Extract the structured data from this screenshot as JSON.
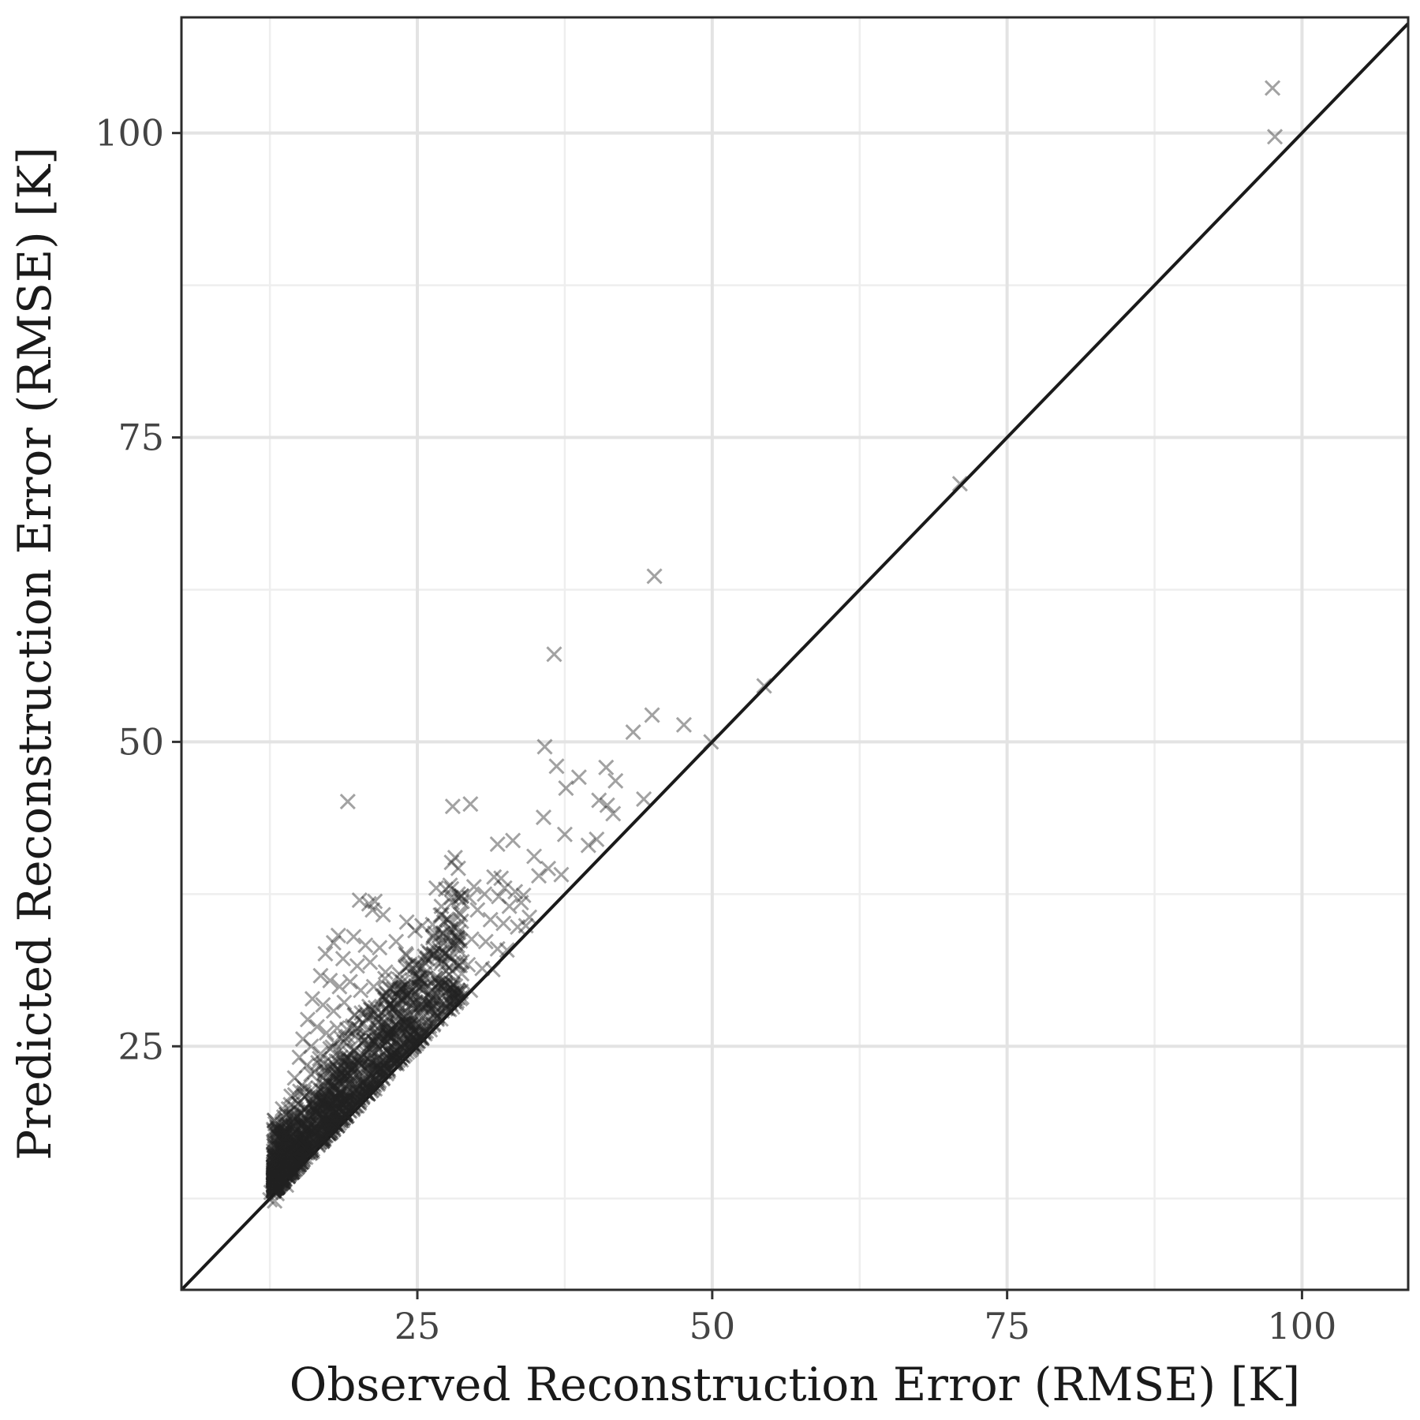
{
  "chart_data": {
    "type": "scatter",
    "title": "",
    "xlabel": "Observed Reconstruction Error (RMSE) [K]",
    "ylabel": "Predicted Reconstruction Error (RMSE) [K]",
    "xlim": [
      5,
      109
    ],
    "ylim": [
      5,
      109.5
    ],
    "x_ticks": [
      25,
      50,
      75,
      100
    ],
    "y_ticks": [
      25,
      50,
      75,
      100
    ],
    "x_tick_labels": [
      "25",
      "50",
      "75",
      "100"
    ],
    "y_tick_labels": [
      "25",
      "50",
      "75",
      "100"
    ],
    "x_minor_ticks": [
      12.5,
      37.5,
      62.5,
      87.5
    ],
    "y_minor_ticks": [
      12.5,
      37.5,
      62.5,
      87.5
    ],
    "grid": true,
    "reference_line": {
      "type": "identity",
      "slope": 1,
      "intercept": 0
    },
    "marker": "x",
    "marker_color": "#222222",
    "marker_opacity": 0.42,
    "series": [
      {
        "points": [
          [
            97.5,
            103.7
          ],
          [
            97.7,
            99.7
          ],
          [
            71.0,
            71.2
          ],
          [
            45.1,
            63.6
          ],
          [
            36.6,
            57.2
          ],
          [
            54.4,
            54.6
          ],
          [
            49.9,
            50.0
          ],
          [
            44.9,
            52.2
          ],
          [
            43.3,
            50.8
          ],
          [
            47.6,
            51.4
          ],
          [
            35.8,
            49.6
          ],
          [
            36.8,
            48.0
          ],
          [
            38.7,
            47.1
          ],
          [
            37.6,
            46.2
          ],
          [
            41.0,
            47.9
          ],
          [
            41.8,
            46.8
          ],
          [
            40.4,
            45.2
          ],
          [
            41.1,
            44.8
          ],
          [
            44.2,
            45.3
          ],
          [
            41.6,
            44.1
          ],
          [
            19.1,
            45.1
          ],
          [
            28.0,
            44.7
          ],
          [
            29.5,
            44.9
          ],
          [
            35.7,
            43.8
          ],
          [
            37.5,
            42.4
          ],
          [
            39.5,
            41.5
          ],
          [
            40.2,
            42.0
          ],
          [
            33.1,
            41.9
          ],
          [
            31.8,
            41.6
          ],
          [
            28.2,
            40.5
          ],
          [
            27.9,
            40.1
          ],
          [
            34.9,
            40.6
          ],
          [
            36.1,
            39.6
          ],
          [
            37.2,
            39.1
          ],
          [
            35.3,
            39.0
          ],
          [
            32.1,
            38.8
          ],
          [
            32.4,
            38.0
          ],
          [
            33.3,
            37.7
          ],
          [
            34.0,
            37.4
          ],
          [
            31.5,
            38.9
          ],
          [
            29.8,
            38.1
          ],
          [
            30.7,
            37.5
          ],
          [
            29.4,
            37.2
          ],
          [
            31.9,
            37.3
          ],
          [
            32.8,
            36.5
          ],
          [
            33.8,
            36.8
          ],
          [
            34.5,
            35.6
          ],
          [
            26.6,
            38.0
          ],
          [
            27.4,
            37.9
          ],
          [
            28.8,
            36.9
          ],
          [
            30.1,
            36.2
          ],
          [
            31.2,
            35.4
          ],
          [
            32.3,
            35.1
          ],
          [
            33.5,
            34.8
          ],
          [
            34.2,
            34.9
          ],
          [
            20.1,
            37.0
          ],
          [
            20.9,
            36.7
          ],
          [
            21.4,
            36.9
          ],
          [
            21.2,
            36.2
          ],
          [
            22.1,
            35.8
          ],
          [
            24.1,
            35.2
          ],
          [
            25.4,
            34.9
          ],
          [
            26.3,
            35.0
          ],
          [
            27.2,
            34.3
          ],
          [
            28.4,
            33.9
          ],
          [
            29.6,
            33.8
          ],
          [
            30.8,
            33.6
          ],
          [
            31.8,
            33.0
          ],
          [
            32.6,
            32.9
          ],
          [
            17.9,
            33.5
          ],
          [
            18.3,
            34.1
          ],
          [
            19.6,
            34.0
          ],
          [
            20.6,
            33.3
          ],
          [
            21.8,
            33.1
          ],
          [
            23.2,
            33.6
          ],
          [
            24.0,
            32.6
          ],
          [
            25.9,
            32.8
          ],
          [
            27.0,
            32.2
          ],
          [
            28.1,
            31.9
          ],
          [
            29.3,
            31.7
          ],
          [
            30.5,
            31.4
          ],
          [
            31.4,
            31.3
          ],
          [
            17.2,
            32.6
          ],
          [
            18.7,
            32.2
          ],
          [
            19.9,
            31.6
          ],
          [
            21.0,
            31.9
          ],
          [
            22.3,
            31.1
          ],
          [
            23.5,
            30.9
          ],
          [
            24.6,
            31.4
          ],
          [
            25.7,
            30.6
          ],
          [
            26.8,
            30.2
          ],
          [
            27.8,
            29.8
          ],
          [
            28.7,
            29.5
          ],
          [
            29.5,
            29.6
          ],
          [
            16.8,
            30.8
          ],
          [
            17.6,
            30.4
          ],
          [
            18.4,
            29.9
          ],
          [
            19.3,
            30.3
          ],
          [
            20.2,
            29.6
          ],
          [
            21.3,
            29.9
          ],
          [
            22.4,
            29.3
          ],
          [
            23.4,
            29.0
          ],
          [
            24.4,
            28.8
          ],
          [
            25.3,
            28.4
          ],
          [
            26.2,
            28.1
          ],
          [
            27.1,
            27.9
          ],
          [
            16.1,
            28.9
          ],
          [
            17.0,
            28.4
          ],
          [
            17.9,
            27.9
          ],
          [
            18.8,
            28.6
          ],
          [
            19.7,
            27.6
          ],
          [
            20.6,
            27.8
          ],
          [
            21.5,
            27.2
          ],
          [
            22.4,
            26.9
          ],
          [
            23.3,
            26.6
          ],
          [
            24.2,
            26.3
          ],
          [
            25.1,
            26.0
          ],
          [
            15.7,
            27.2
          ],
          [
            16.5,
            26.6
          ],
          [
            17.3,
            26.1
          ],
          [
            18.2,
            26.5
          ],
          [
            19.1,
            25.8
          ],
          [
            20.0,
            25.5
          ],
          [
            20.9,
            25.1
          ],
          [
            21.8,
            24.8
          ],
          [
            22.7,
            24.5
          ],
          [
            23.6,
            24.3
          ],
          [
            15.3,
            25.6
          ],
          [
            16.0,
            25.0
          ],
          [
            16.8,
            24.4
          ],
          [
            17.6,
            24.8
          ],
          [
            18.5,
            24.1
          ],
          [
            19.4,
            23.8
          ],
          [
            20.3,
            23.4
          ],
          [
            21.2,
            23.1
          ],
          [
            22.1,
            22.9
          ],
          [
            15.0,
            24.1
          ],
          [
            15.6,
            23.4
          ],
          [
            16.3,
            22.9
          ],
          [
            17.1,
            23.2
          ],
          [
            17.9,
            22.6
          ],
          [
            18.8,
            22.2
          ],
          [
            19.7,
            21.9
          ],
          [
            20.6,
            21.6
          ],
          [
            21.4,
            21.5
          ],
          [
            14.6,
            22.4
          ],
          [
            15.2,
            21.8
          ],
          [
            15.9,
            21.3
          ],
          [
            16.6,
            21.6
          ],
          [
            17.4,
            20.9
          ],
          [
            18.2,
            20.6
          ],
          [
            19.0,
            20.3
          ],
          [
            19.9,
            20.1
          ],
          [
            14.3,
            20.9
          ],
          [
            14.9,
            20.3
          ],
          [
            15.5,
            19.8
          ],
          [
            16.2,
            20.1
          ],
          [
            16.9,
            19.4
          ],
          [
            17.7,
            19.1
          ],
          [
            18.5,
            18.9
          ],
          [
            13.9,
            19.4
          ],
          [
            14.5,
            18.9
          ],
          [
            15.1,
            18.4
          ],
          [
            15.8,
            18.7
          ],
          [
            16.5,
            18.0
          ],
          [
            17.2,
            17.7
          ],
          [
            13.6,
            18.0
          ],
          [
            14.1,
            17.5
          ],
          [
            14.7,
            17.1
          ],
          [
            15.4,
            17.3
          ],
          [
            16.0,
            16.8
          ],
          [
            13.3,
            16.6
          ],
          [
            13.8,
            16.2
          ],
          [
            14.4,
            15.9
          ],
          [
            15.0,
            15.8
          ],
          [
            13.0,
            15.3
          ],
          [
            13.5,
            14.9
          ],
          [
            14.0,
            14.6
          ],
          [
            12.8,
            14.1
          ],
          [
            13.3,
            13.7
          ],
          [
            13.9,
            13.6
          ],
          [
            12.6,
            13.0
          ],
          [
            13.1,
            12.9
          ],
          [
            12.5,
            12.4
          ],
          [
            12.9,
            12.3
          ]
        ]
      }
    ]
  }
}
